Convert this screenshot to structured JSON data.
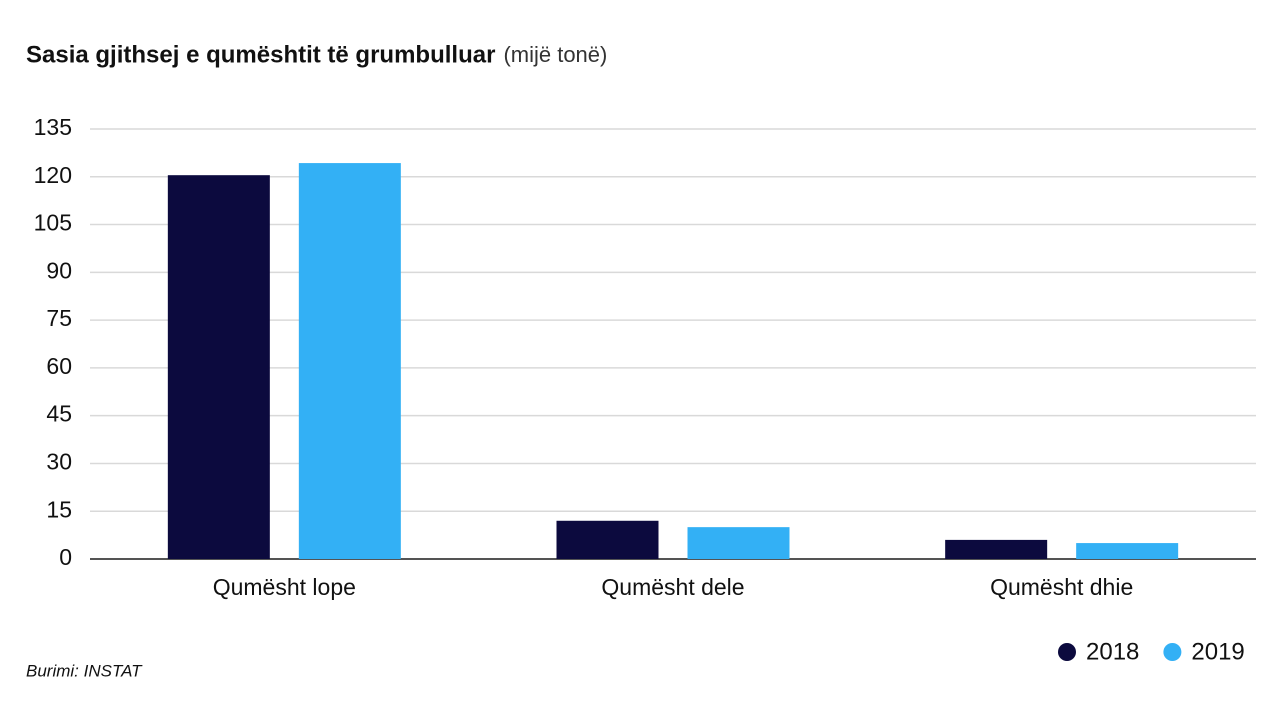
{
  "chart_data": {
    "type": "bar",
    "title": "Sasia gjithsej e qumështit të grumbulluar",
    "subtitle": "(mijë tonë)",
    "source": "Burimi: INSTAT",
    "categories": [
      "Qumësht lope",
      "Qumësht dele",
      "Qumësht dhie"
    ],
    "series": [
      {
        "name": "2018",
        "color": "#0c0a3e",
        "values": [
          120.5,
          12,
          6
        ]
      },
      {
        "name": "2019",
        "color": "#33b0f5",
        "values": [
          124.3,
          10,
          5
        ]
      }
    ],
    "ylim": [
      0,
      135
    ],
    "yticks": [
      0,
      15,
      30,
      45,
      60,
      75,
      90,
      105,
      120,
      135
    ],
    "grid": true,
    "legend": "bottom-right"
  }
}
